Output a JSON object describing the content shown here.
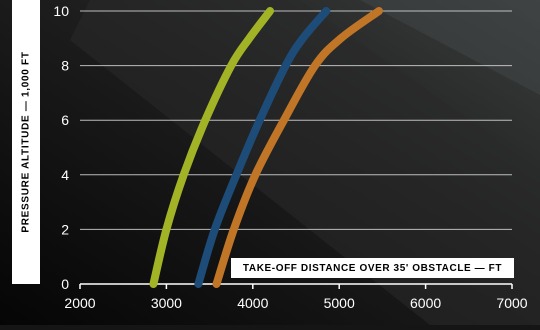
{
  "chart_data": {
    "type": "line",
    "title": "",
    "xlabel": "TAKE-OFF DISTANCE OVER 35' OBSTACLE — FT",
    "ylabel": "PRESSURE ALTITUDE — 1,000 FT",
    "xlim": [
      2000,
      7000
    ],
    "ylim": [
      0,
      10
    ],
    "x_ticks": [
      "2000",
      "3000",
      "4000",
      "5000",
      "6000",
      "7000"
    ],
    "y_ticks": [
      "0",
      "2",
      "4",
      "6",
      "8",
      "10"
    ],
    "grid": "horizontal",
    "series": [
      {
        "color": "#a2b326",
        "points": [
          [
            2850,
            0
          ],
          [
            3000,
            2
          ],
          [
            3200,
            4
          ],
          [
            3450,
            6
          ],
          [
            3750,
            8
          ],
          [
            3960,
            9
          ],
          [
            4200,
            10
          ]
        ]
      },
      {
        "color": "#1e4c78",
        "points": [
          [
            3370,
            0
          ],
          [
            3560,
            2
          ],
          [
            3810,
            4
          ],
          [
            4080,
            6
          ],
          [
            4380,
            8
          ],
          [
            4580,
            9
          ],
          [
            4850,
            10
          ]
        ]
      },
      {
        "color": "#c07626",
        "points": [
          [
            3580,
            0
          ],
          [
            3780,
            2
          ],
          [
            4030,
            4
          ],
          [
            4360,
            6
          ],
          [
            4720,
            8
          ],
          [
            5020,
            9
          ],
          [
            5460,
            10
          ]
        ]
      }
    ]
  }
}
